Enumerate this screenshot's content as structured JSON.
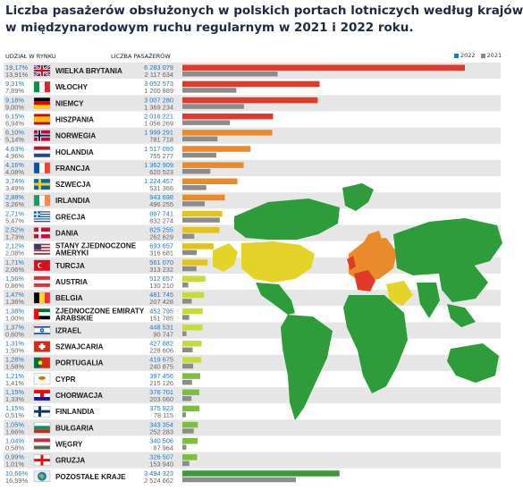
{
  "title_line1": "Liczba pasażerów obsłużonych w polskich portach lotniczych według krajów",
  "title_line2": "w międzynarodowym ruchu regularnym w 2021 i 2022 roku.",
  "header_share": "UDZIAŁ W RYNKU",
  "header_passengers": "LICZBA PASAŻERÓW",
  "legend_2022": "2022",
  "legend_2021": "2021",
  "colors": {
    "blue": "#2e75b6",
    "grey_bar": "#8c8c8c",
    "red": "#e23a2a",
    "orange": "#e98a2c",
    "yellow": "#e3c31f",
    "lime": "#c7dc3a",
    "green": "#7dbd3f",
    "dark_green": "#3a9a3a",
    "map_green": "#2e9c3a",
    "map_yellow": "#e4d42a"
  },
  "chart_data": {
    "type": "bar",
    "title": "Liczba pasażerów obsłużonych w polskich portach lotniczych według krajów w międzynarodowym ruchu regularnym w 2021 i 2022 roku.",
    "xlabel": "",
    "ylabel": "",
    "series_names": [
      "2022",
      "2021"
    ],
    "rows": [
      {
        "country": "WIELKA BRYTANIA",
        "share22": "19,17%",
        "share21": "13,91%",
        "v22": 6283079,
        "v21": 2117634,
        "l22": "6 283 079",
        "l21": "2 117 634",
        "flag": "uk",
        "color": "red"
      },
      {
        "country": "WŁOCHY",
        "share22": "9,31%",
        "share21": "7,89%",
        "v22": 3052573,
        "v21": 1200889,
        "l22": "3 052 573",
        "l21": "1 200 889",
        "flag": "it",
        "color": "red"
      },
      {
        "country": "NIEMCY",
        "share22": "9,18%",
        "share21": "9,00%",
        "v22": 3007280,
        "v21": 1369234,
        "l22": "3 007 280",
        "l21": "1 369 234",
        "flag": "de",
        "color": "red"
      },
      {
        "country": "HISZPANIA",
        "share22": "6,15%",
        "share21": "6,94%",
        "v22": 2016221,
        "v21": 1056269,
        "l22": "2 016 221",
        "l21": "1 056 269",
        "flag": "es",
        "color": "red"
      },
      {
        "country": "NORWEGIA",
        "share22": "6,10%",
        "share21": "5,14%",
        "v22": 1999291,
        "v21": 781718,
        "l22": "1 999 291",
        "l21": "781 718",
        "flag": "no",
        "color": "orange"
      },
      {
        "country": "HOLANDIA",
        "share22": "4,63%",
        "share21": "4,96%",
        "v22": 1517093,
        "v21": 755277,
        "l22": "1 517 093",
        "l21": "755 277",
        "flag": "nl",
        "color": "orange"
      },
      {
        "country": "FRANCJA",
        "share22": "4,16%",
        "share21": "4,08%",
        "v22": 1362909,
        "v21": 620523,
        "l22": "1 362 909",
        "l21": "620 523",
        "flag": "fr",
        "color": "orange"
      },
      {
        "country": "SZWECJA",
        "share22": "3,74%",
        "share21": "3,49%",
        "v22": 1224457,
        "v21": 531366,
        "l22": "1 224 457",
        "l21": "531 366",
        "flag": "se",
        "color": "orange"
      },
      {
        "country": "IRLANDIA",
        "share22": "2,88%",
        "share21": "3,26%",
        "v22": 943698,
        "v21": 496255,
        "l22": "943 698",
        "l21": "496 255",
        "flag": "ie",
        "color": "orange"
      },
      {
        "country": "GRECJA",
        "share22": "2,71%",
        "share21": "5,47%",
        "v22": 887741,
        "v21": 832274,
        "l22": "887 741",
        "l21": "832 274",
        "flag": "gr",
        "color": "yellow"
      },
      {
        "country": "DANIA",
        "share22": "2,52%",
        "share21": "1,73%",
        "v22": 825255,
        "v21": 262629,
        "l22": "825 255",
        "l21": "262 629",
        "flag": "dk",
        "color": "yellow"
      },
      {
        "country": "STANY ZJEDNOCZONE AMERYKI",
        "share22": "2,12%",
        "share21": "2,08%",
        "v22": 693657,
        "v21": 316681,
        "l22": "693 657",
        "l21": "316 681",
        "flag": "us",
        "color": "yellow"
      },
      {
        "country": "TURCJA",
        "share22": "1,71%",
        "share21": "2,06%",
        "v22": 561070,
        "v21": 313232,
        "l22": "561 070",
        "l21": "313 232",
        "flag": "tr",
        "color": "yellow"
      },
      {
        "country": "AUSTRIA",
        "share22": "1,56%",
        "share21": "0,86%",
        "v22": 512657,
        "v21": 130210,
        "l22": "512 657",
        "l21": "130 210",
        "flag": "at",
        "color": "lime"
      },
      {
        "country": "BELGIA",
        "share22": "1,47%",
        "share21": "1,36%",
        "v22": 481745,
        "v21": 207428,
        "l22": "481 745",
        "l21": "207 428",
        "flag": "be",
        "color": "lime"
      },
      {
        "country": "ZJEDNOCZONE EMIRATY ARABSKIE",
        "share22": "1,38%",
        "share21": "1,00%",
        "v22": 452795,
        "v21": 151785,
        "l22": "452 795",
        "l21": "151 785",
        "flag": "ae",
        "color": "lime"
      },
      {
        "country": "IZRAEL",
        "share22": "1,37%",
        "share21": "0,60%",
        "v22": 448531,
        "v21": 90747,
        "l22": "448 531",
        "l21": "90 747",
        "flag": "il",
        "color": "lime"
      },
      {
        "country": "SZWAJCARIA",
        "share22": "1,31%",
        "share21": "1,50%",
        "v22": 427882,
        "v21": 228606,
        "l22": "427 882",
        "l21": "228 606",
        "flag": "ch",
        "color": "lime"
      },
      {
        "country": "PORTUGALIA",
        "share22": "1,28%",
        "share21": "1,58%",
        "v22": 419675,
        "v21": 240875,
        "l22": "419 675",
        "l21": "240 875",
        "flag": "pt",
        "color": "lime"
      },
      {
        "country": "CYPR",
        "share22": "1,21%",
        "share21": "1,41%",
        "v22": 397456,
        "v21": 215126,
        "l22": "397 456",
        "l21": "215 126",
        "flag": "cy",
        "color": "green"
      },
      {
        "country": "CHORWACJA",
        "share22": "1,15%",
        "share21": "1,33%",
        "v22": 376701,
        "v21": 203060,
        "l22": "376 701",
        "l21": "203 060",
        "flag": "hr",
        "color": "green"
      },
      {
        "country": "FINLANDIA",
        "share22": "1,15%",
        "share21": "0,51%",
        "v22": 375923,
        "v21": 78115,
        "l22": "375 923",
        "l21": "78 115",
        "flag": "fi",
        "color": "green"
      },
      {
        "country": "BUŁGARIA",
        "share22": "1,05%",
        "share21": "1,66%",
        "v22": 343354,
        "v21": 252283,
        "l22": "343 354",
        "l21": "252 283",
        "flag": "bg",
        "color": "green"
      },
      {
        "country": "WĘGRY",
        "share22": "1,04%",
        "share21": "0,58%",
        "v22": 340506,
        "v21": 87964,
        "l22": "340 506",
        "l21": "87 964",
        "flag": "hu",
        "color": "green"
      },
      {
        "country": "GRUZJA",
        "share22": "0,99%",
        "share21": "1,01%",
        "v22": 326507,
        "v21": 153940,
        "l22": "326 507",
        "l21": "153 940",
        "flag": "ge",
        "color": "green"
      },
      {
        "country": "POZOSTAŁE KRAJE",
        "share22": "10,66%",
        "share21": "16,59%",
        "v22": 3494323,
        "v21": 2524662,
        "l22": "3 494 323",
        "l21": "2 524 662",
        "flag": "world",
        "color": "dark_green"
      }
    ]
  }
}
